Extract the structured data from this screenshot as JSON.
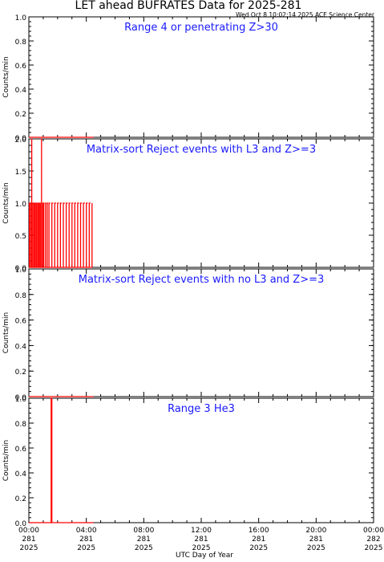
{
  "figure": {
    "title": "LET ahead BUFRATES Data for 2025-281",
    "timestamp": "Wed Oct  8 10:02:14 2025 ACE Science Center",
    "xlabel": "UTC Day of Year",
    "colors": {
      "data": "#ff0000",
      "panel_title": "#1a1aff",
      "axes": "#000000"
    }
  },
  "chart_data": [
    {
      "type": "line",
      "title": "Range 4 or   penetrating Z>30",
      "ylabel": "Counts/min",
      "ylim": [
        0,
        1
      ],
      "yticks": [
        "0.0",
        "0.2",
        "0.4",
        "0.6",
        "0.8",
        "1.0"
      ],
      "xlim_hours": [
        0,
        24
      ],
      "series": [
        {
          "x": [
            0,
            4.5
          ],
          "values": [
            0,
            0
          ]
        }
      ]
    },
    {
      "type": "line",
      "title": "Matrix-sort Reject events with L3 and Z>=3",
      "ylabel": "Counts/min",
      "ylim": [
        0,
        2
      ],
      "yticks": [
        "0.0",
        "0.5",
        "1.0",
        "1.5",
        "2.0"
      ],
      "xlim_hours": [
        0,
        24
      ],
      "series": [
        {
          "x": [
            0.04,
            0.08,
            0.12,
            0.16,
            0.2,
            0.24,
            0.28,
            0.32,
            0.36,
            0.4,
            0.44,
            0.48,
            0.52,
            0.56,
            0.6,
            0.64,
            0.68,
            0.72,
            0.76,
            0.8,
            0.84,
            0.88,
            0.92,
            0.96,
            1.0,
            1.04,
            1.1,
            1.16,
            1.22,
            1.28,
            1.34,
            1.4,
            1.5,
            1.6,
            1.7,
            1.8,
            1.9,
            2.0,
            2.1,
            2.2,
            2.3,
            2.4,
            2.5,
            2.6,
            2.7,
            2.8,
            2.9,
            3.0,
            3.1,
            3.2,
            3.3,
            3.4,
            3.5,
            3.6,
            3.7,
            3.8,
            3.9,
            4.0,
            4.1,
            4.2,
            4.3,
            4.4
          ],
          "values": [
            1,
            0,
            1,
            0,
            2,
            0,
            1,
            0,
            1,
            0,
            1,
            0,
            1,
            0,
            1,
            0,
            1,
            1,
            0,
            1,
            0,
            2,
            0,
            1,
            0,
            1,
            0,
            1,
            0,
            1,
            0,
            1,
            0,
            1,
            0,
            1,
            0,
            1,
            0,
            1,
            0,
            1,
            0,
            1,
            0,
            1,
            0,
            1,
            0,
            1,
            0,
            1,
            0,
            1,
            0,
            1,
            0,
            1,
            0,
            1,
            0,
            1
          ]
        }
      ]
    },
    {
      "type": "line",
      "title": "Matrix-sort Reject events with no L3 and Z>=3",
      "ylabel": "Counts/min",
      "ylim": [
        0,
        1
      ],
      "yticks": [
        "0.0",
        "0.2",
        "0.4",
        "0.6",
        "0.8",
        "1.0"
      ],
      "xlim_hours": [
        0,
        24
      ],
      "series": [
        {
          "x": [
            0,
            4.5
          ],
          "values": [
            0,
            0
          ]
        }
      ]
    },
    {
      "type": "line",
      "title": "Range 3 He3",
      "ylabel": "Counts/min",
      "ylim": [
        0,
        1
      ],
      "yticks": [
        "0.0",
        "0.2",
        "0.4",
        "0.6",
        "0.8",
        "1.0"
      ],
      "xlim_hours": [
        0,
        24
      ],
      "xticks": [
        {
          "time": "00:00",
          "doy": "281",
          "year": "2025"
        },
        {
          "time": "04:00",
          "doy": "281",
          "year": "2025"
        },
        {
          "time": "08:00",
          "doy": "281",
          "year": "2025"
        },
        {
          "time": "12:00",
          "doy": "281",
          "year": "2025"
        },
        {
          "time": "16:00",
          "doy": "281",
          "year": "2025"
        },
        {
          "time": "20:00",
          "doy": "281",
          "year": "2025"
        },
        {
          "time": "00:00",
          "doy": "282",
          "year": "2025"
        }
      ],
      "series": [
        {
          "x": [
            0,
            1.55,
            1.55,
            1.6,
            1.6,
            4.5
          ],
          "values": [
            0,
            0,
            1,
            1,
            0,
            0
          ]
        }
      ]
    }
  ]
}
